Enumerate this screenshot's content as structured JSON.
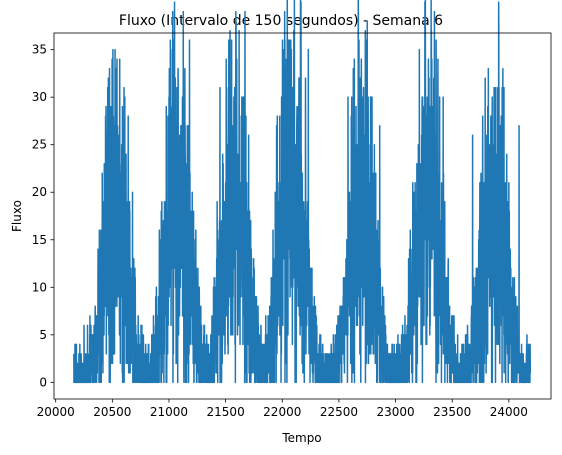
{
  "chart_data": {
    "type": "line",
    "title": "Fluxo (Intervalo de 150 segundos) - Semana 6",
    "xlabel": "Tempo",
    "ylabel": "Fluxo",
    "xlim": [
      19985,
      24372
    ],
    "ylim": [
      -1.75,
      36.75
    ],
    "xticks": [
      20000,
      20500,
      21000,
      21500,
      22000,
      22500,
      23000,
      23500,
      24000
    ],
    "yticks": [
      0,
      5,
      10,
      15,
      20,
      25,
      30,
      35
    ],
    "grid": false,
    "series": [
      {
        "name": "Fluxo",
        "color": "#1f77b4",
        "x_start": 20160,
        "x_end": 24191,
        "description_points": [
          {
            "x": 20160,
            "y": 3
          },
          {
            "x": 20250,
            "y": 6
          },
          {
            "x": 20350,
            "y": 0
          },
          {
            "x": 20450,
            "y": 21
          },
          {
            "x": 20510,
            "y": 26
          },
          {
            "x": 20640,
            "y": 28
          },
          {
            "x": 20700,
            "y": 0
          },
          {
            "x": 20900,
            "y": 2
          },
          {
            "x": 21000,
            "y": 30
          },
          {
            "x": 21140,
            "y": 33
          },
          {
            "x": 21270,
            "y": 1
          },
          {
            "x": 21450,
            "y": 31
          },
          {
            "x": 21660,
            "y": 30
          },
          {
            "x": 21730,
            "y": 1
          },
          {
            "x": 21950,
            "y": 27
          },
          {
            "x": 22230,
            "y": 35
          },
          {
            "x": 22260,
            "y": 2
          },
          {
            "x": 22500,
            "y": 0
          },
          {
            "x": 22580,
            "y": 30
          },
          {
            "x": 22860,
            "y": 27
          },
          {
            "x": 22960,
            "y": 0
          },
          {
            "x": 23100,
            "y": 3
          },
          {
            "x": 23320,
            "y": 34
          },
          {
            "x": 23420,
            "y": 30
          },
          {
            "x": 23600,
            "y": 0
          },
          {
            "x": 23680,
            "y": 26
          },
          {
            "x": 23880,
            "y": 31
          },
          {
            "x": 24090,
            "y": 27
          },
          {
            "x": 24190,
            "y": 1
          }
        ],
        "peaks": [
          {
            "center": 20530,
            "max": 28
          },
          {
            "center": 21080,
            "max": 33
          },
          {
            "center": 21580,
            "max": 31
          },
          {
            "center": 22080,
            "max": 35
          },
          {
            "center": 22700,
            "max": 30
          },
          {
            "center": 23290,
            "max": 34
          },
          {
            "center": 23870,
            "max": 31
          }
        ]
      }
    ]
  }
}
